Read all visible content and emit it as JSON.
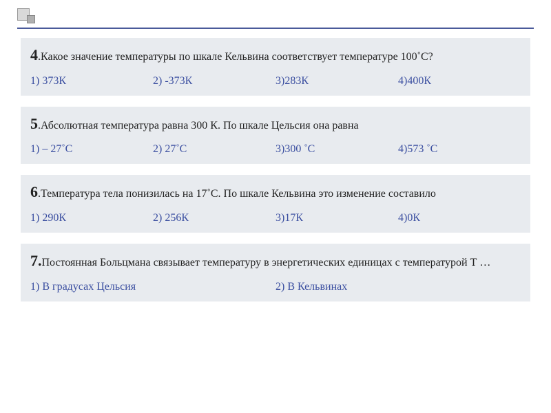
{
  "colors": {
    "block_bg": "#e8ebef",
    "answer_color": "#3a4ea0",
    "text_color": "#222222",
    "line_color": "#4a5a9a"
  },
  "q4": {
    "num": "4",
    "text": ".Какое значение температуры по шкале Кельвина соответствует температуре 100˚С?",
    "a1": "1) 373К",
    "a2": "2) -373К",
    "a3": "3)283К",
    "a4": "4)400К"
  },
  "q5": {
    "num": "5",
    "text": ".Абсолютная температура равна 300 К. По шкале Цельсия она равна",
    "a1": "1) – 27˚С",
    "a2": "2) 27˚С",
    "a3": "3)300 ˚С",
    "a4": "4)573 ˚С"
  },
  "q6": {
    "num": "6",
    "text": ".Температура тела понизилась на 17˚С. По шкале Кельвина это изменение составило",
    "a1": "1) 290К",
    "a2": "2) 256К",
    "a3": "3)17К",
    "a4": "4)0К"
  },
  "q7": {
    "num": "7.",
    "text": "Постоянная Больцмана связывает температуру в энергетических единицах с температурой Т …",
    "a1": "1) В градусах Цельсия",
    "a2": "2) В Кельвинах"
  }
}
